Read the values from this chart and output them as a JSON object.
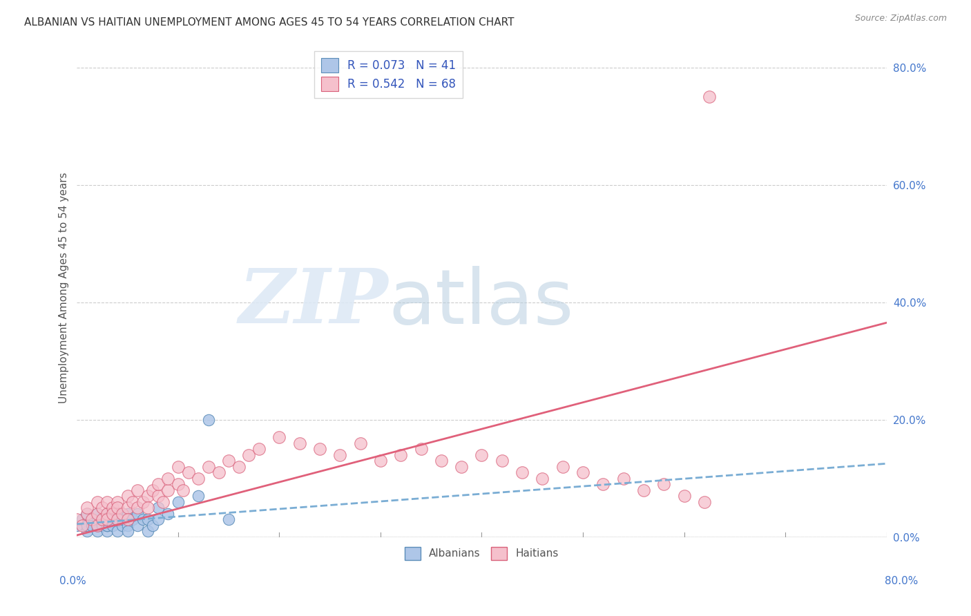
{
  "title": "ALBANIAN VS HAITIAN UNEMPLOYMENT AMONG AGES 45 TO 54 YEARS CORRELATION CHART",
  "source": "Source: ZipAtlas.com",
  "ylabel": "Unemployment Among Ages 45 to 54 years",
  "xlim": [
    0.0,
    0.8
  ],
  "ylim": [
    0.0,
    0.85
  ],
  "yticks": [
    0.0,
    0.2,
    0.4,
    0.6,
    0.8
  ],
  "ytick_labels": [
    "0.0%",
    "20.0%",
    "40.0%",
    "60.0%",
    "80.0%"
  ],
  "albanian_R": 0.073,
  "albanian_N": 41,
  "haitian_R": 0.542,
  "haitian_N": 68,
  "albanian_color": "#aec6e8",
  "albanian_edge_color": "#5b8db8",
  "haitian_color": "#f5c0cc",
  "haitian_edge_color": "#d9607a",
  "albanian_line_color": "#7aadd4",
  "haitian_line_color": "#e0607a",
  "title_color": "#333333",
  "axis_label_color": "#4477cc",
  "legend_text_color": "#3355bb",
  "background_color": "#ffffff",
  "grid_color": "#cccccc",
  "alb_line_start_x": 0.0,
  "alb_line_start_y": 0.022,
  "alb_line_end_x": 0.8,
  "alb_line_end_y": 0.125,
  "hai_line_start_x": 0.0,
  "hai_line_start_y": 0.003,
  "hai_line_end_x": 0.8,
  "hai_line_end_y": 0.365,
  "albanian_scatter_x": [
    0.0,
    0.005,
    0.01,
    0.01,
    0.01,
    0.015,
    0.02,
    0.02,
    0.02,
    0.02,
    0.025,
    0.025,
    0.03,
    0.03,
    0.03,
    0.03,
    0.03,
    0.035,
    0.035,
    0.04,
    0.04,
    0.04,
    0.045,
    0.045,
    0.05,
    0.05,
    0.05,
    0.055,
    0.06,
    0.06,
    0.065,
    0.07,
    0.07,
    0.075,
    0.08,
    0.08,
    0.09,
    0.1,
    0.12,
    0.13,
    0.15
  ],
  "albanian_scatter_y": [
    0.02,
    0.03,
    0.01,
    0.02,
    0.04,
    0.02,
    0.01,
    0.03,
    0.02,
    0.04,
    0.02,
    0.03,
    0.01,
    0.02,
    0.03,
    0.04,
    0.02,
    0.03,
    0.02,
    0.01,
    0.03,
    0.04,
    0.02,
    0.03,
    0.02,
    0.04,
    0.01,
    0.03,
    0.02,
    0.04,
    0.03,
    0.01,
    0.03,
    0.02,
    0.03,
    0.05,
    0.04,
    0.06,
    0.07,
    0.2,
    0.03
  ],
  "haitian_scatter_x": [
    0.0,
    0.005,
    0.01,
    0.01,
    0.015,
    0.02,
    0.02,
    0.02,
    0.025,
    0.025,
    0.03,
    0.03,
    0.03,
    0.035,
    0.035,
    0.04,
    0.04,
    0.04,
    0.045,
    0.05,
    0.05,
    0.05,
    0.055,
    0.06,
    0.06,
    0.065,
    0.07,
    0.07,
    0.075,
    0.08,
    0.08,
    0.085,
    0.09,
    0.09,
    0.1,
    0.1,
    0.105,
    0.11,
    0.12,
    0.13,
    0.14,
    0.15,
    0.16,
    0.17,
    0.18,
    0.2,
    0.22,
    0.24,
    0.26,
    0.28,
    0.3,
    0.32,
    0.34,
    0.36,
    0.38,
    0.4,
    0.42,
    0.44,
    0.46,
    0.48,
    0.5,
    0.52,
    0.54,
    0.56,
    0.58,
    0.6,
    0.62,
    0.625
  ],
  "haitian_scatter_y": [
    0.03,
    0.02,
    0.04,
    0.05,
    0.03,
    0.02,
    0.04,
    0.06,
    0.03,
    0.05,
    0.04,
    0.06,
    0.03,
    0.05,
    0.04,
    0.03,
    0.06,
    0.05,
    0.04,
    0.05,
    0.07,
    0.03,
    0.06,
    0.05,
    0.08,
    0.06,
    0.07,
    0.05,
    0.08,
    0.07,
    0.09,
    0.06,
    0.08,
    0.1,
    0.09,
    0.12,
    0.08,
    0.11,
    0.1,
    0.12,
    0.11,
    0.13,
    0.12,
    0.14,
    0.15,
    0.17,
    0.16,
    0.15,
    0.14,
    0.16,
    0.13,
    0.14,
    0.15,
    0.13,
    0.12,
    0.14,
    0.13,
    0.11,
    0.1,
    0.12,
    0.11,
    0.09,
    0.1,
    0.08,
    0.09,
    0.07,
    0.06,
    0.75
  ]
}
